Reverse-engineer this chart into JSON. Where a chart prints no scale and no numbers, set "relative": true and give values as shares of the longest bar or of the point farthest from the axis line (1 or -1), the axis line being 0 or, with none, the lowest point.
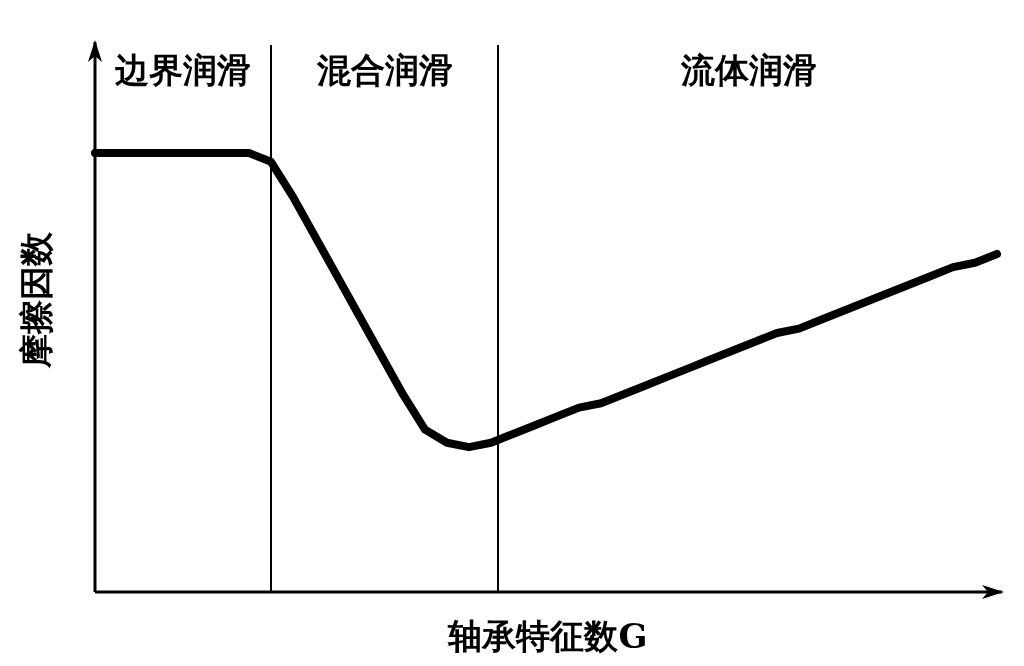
{
  "chart_data": {
    "type": "line",
    "relative": true,
    "xlabel": "轴承特征数G",
    "ylabel": "摩擦因数",
    "categories": [
      null,
      null,
      null,
      null,
      null,
      null,
      null,
      null,
      null,
      null,
      null,
      null,
      null,
      null,
      null,
      null,
      null,
      null,
      null,
      null,
      null,
      null,
      null,
      null,
      null,
      null,
      null,
      null,
      null,
      null,
      null,
      null,
      null,
      null,
      null,
      null,
      null,
      null,
      null,
      null,
      null,
      null
    ],
    "values": [
      1.0,
      1.0,
      1.0,
      1.0,
      1.0,
      1.0,
      1.0,
      1.0,
      0.98,
      0.9,
      0.81,
      0.72,
      0.63,
      0.54,
      0.45,
      0.37,
      0.34,
      0.33,
      0.34,
      0.36,
      0.38,
      0.4,
      0.42,
      0.43,
      0.45,
      0.47,
      0.49,
      0.51,
      0.53,
      0.55,
      0.57,
      0.59,
      0.6,
      0.62,
      0.64,
      0.66,
      0.68,
      0.7,
      0.72,
      0.74,
      0.75,
      0.77
    ],
    "color": "#000000",
    "line_style": "solid",
    "marker": "none",
    "annotations": [
      "边界润滑",
      "混合润滑",
      "流体润滑"
    ]
  }
}
